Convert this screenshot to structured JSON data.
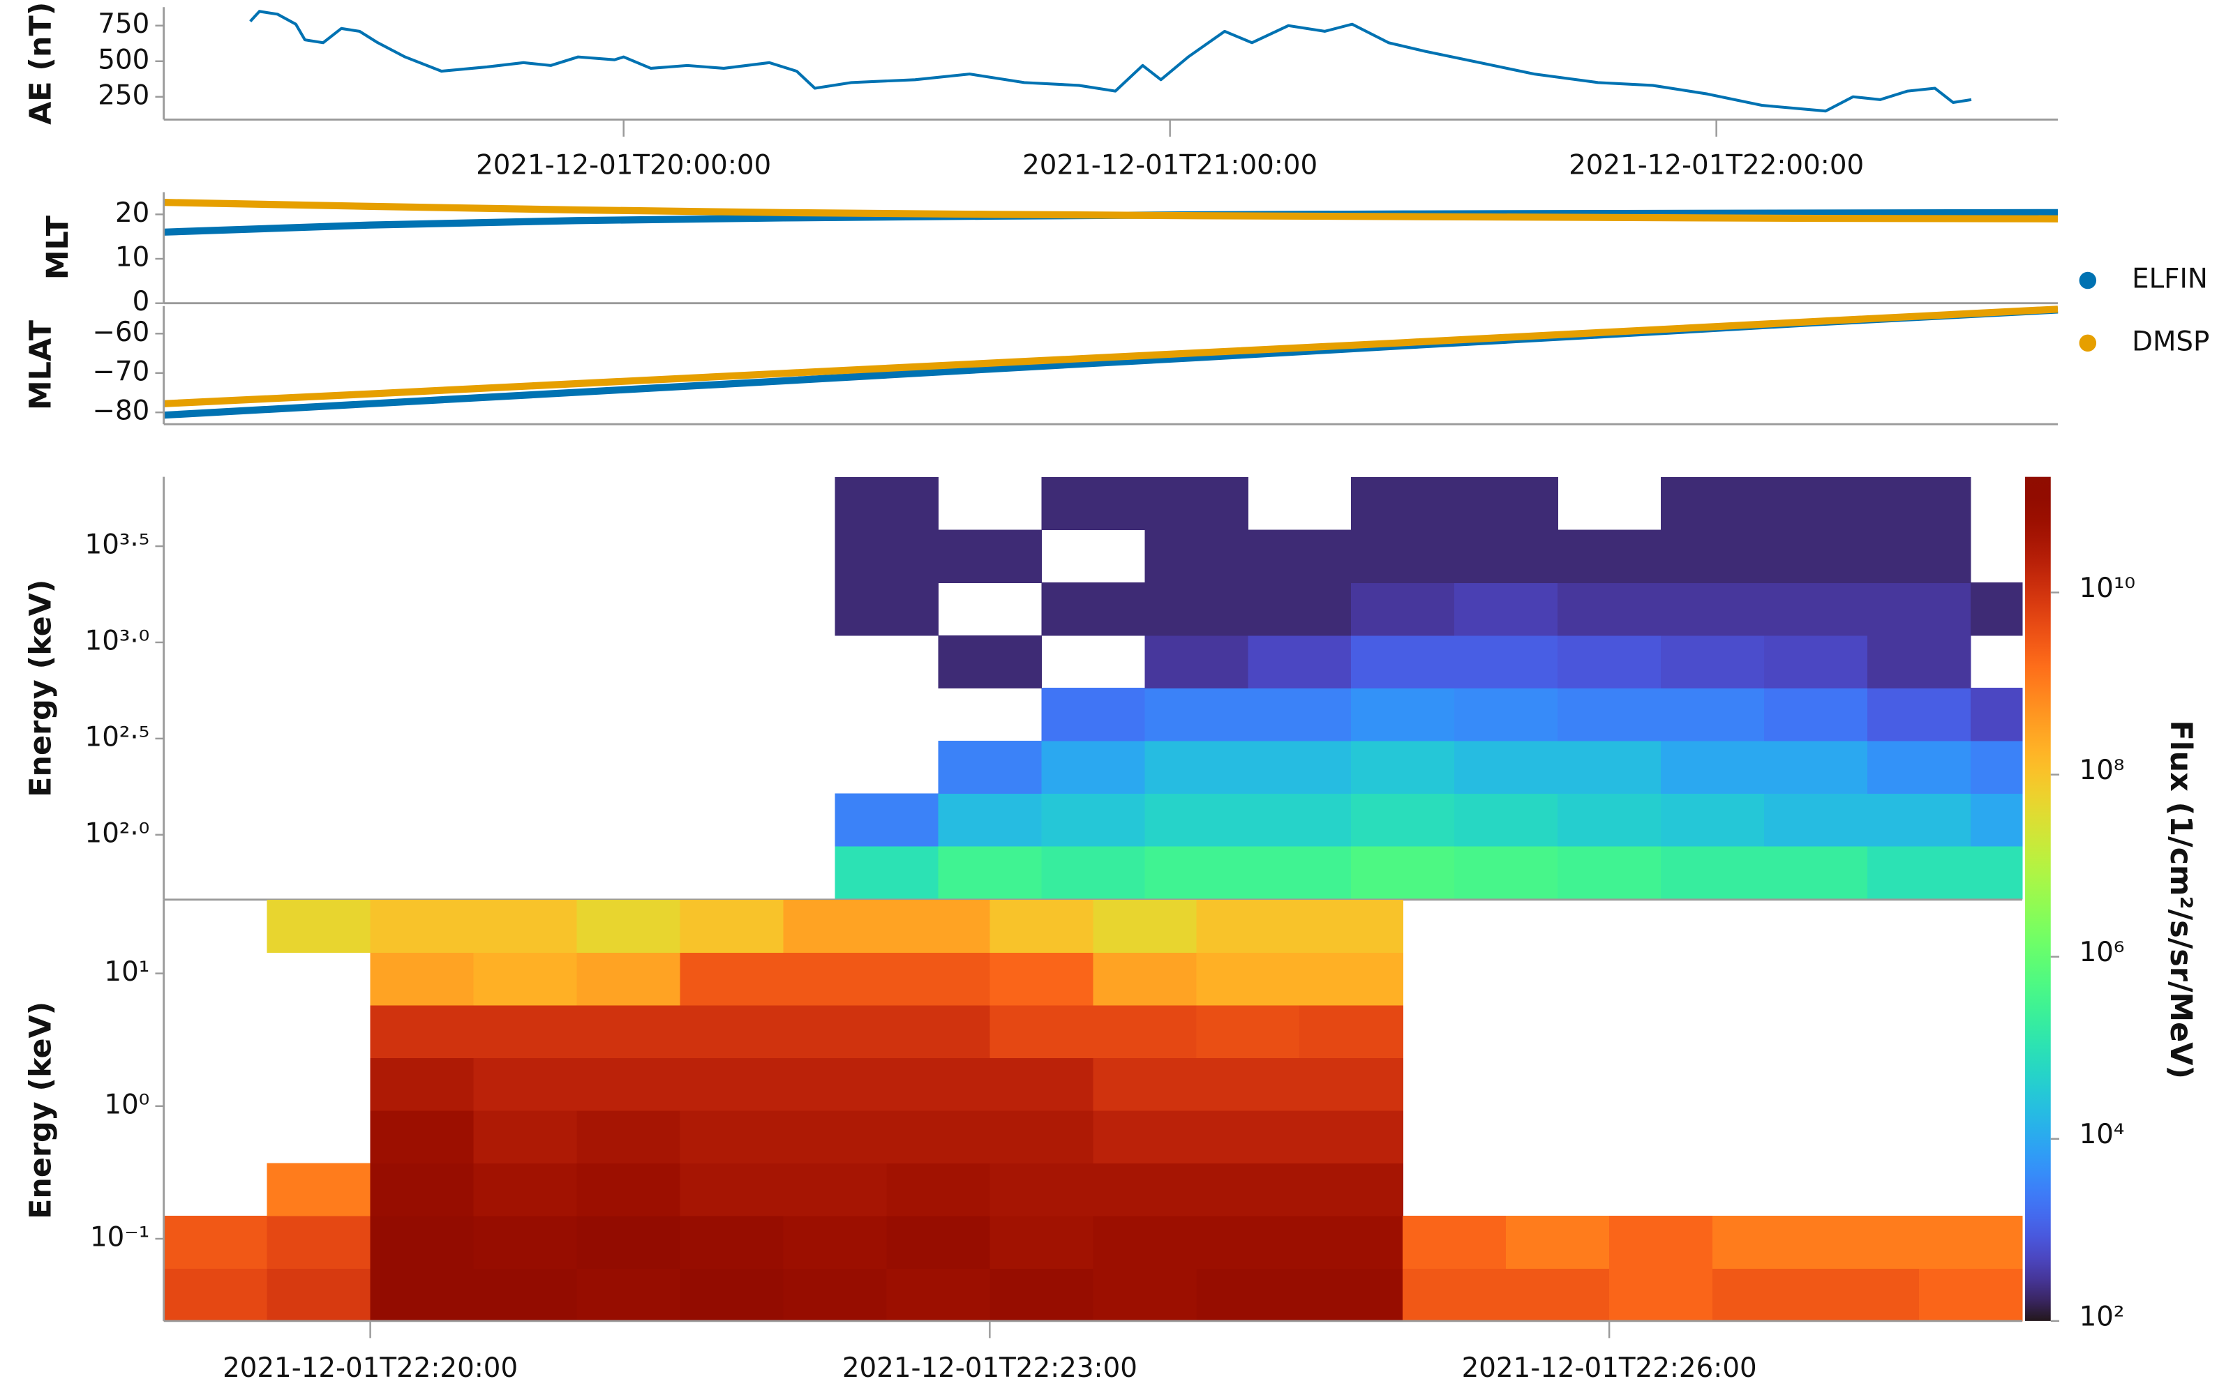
{
  "chart_data": [
    {
      "type": "line",
      "ylabel": "AE (nT)",
      "color": "#0072b2",
      "x": [
        "2021-12-01T19:19:00",
        "2021-12-01T19:20:00",
        "2021-12-01T19:22:00",
        "2021-12-01T19:24:00",
        "2021-12-01T19:25:00",
        "2021-12-01T19:27:00",
        "2021-12-01T19:29:00",
        "2021-12-01T19:31:00",
        "2021-12-01T19:33:00",
        "2021-12-01T19:36:00",
        "2021-12-01T19:40:00",
        "2021-12-01T19:45:00",
        "2021-12-01T19:49:00",
        "2021-12-01T19:52:00",
        "2021-12-01T19:55:00",
        "2021-12-01T19:59:00",
        "2021-12-01T20:00:00",
        "2021-12-01T20:03:00",
        "2021-12-01T20:07:00",
        "2021-12-01T20:11:00",
        "2021-12-01T20:16:00",
        "2021-12-01T20:19:00",
        "2021-12-01T20:21:00",
        "2021-12-01T20:25:00",
        "2021-12-01T20:32:00",
        "2021-12-01T20:38:00",
        "2021-12-01T20:44:00",
        "2021-12-01T20:50:00",
        "2021-12-01T20:54:00",
        "2021-12-01T20:57:00",
        "2021-12-01T20:59:00",
        "2021-12-01T21:02:00",
        "2021-12-01T21:06:00",
        "2021-12-01T21:09:00",
        "2021-12-01T21:13:00",
        "2021-12-01T21:17:00",
        "2021-12-01T21:20:00",
        "2021-12-01T21:24:00",
        "2021-12-01T21:28:00",
        "2021-12-01T21:34:00",
        "2021-12-01T21:40:00",
        "2021-12-01T21:47:00",
        "2021-12-01T21:53:00",
        "2021-12-01T21:59:00",
        "2021-12-01T22:05:00",
        "2021-12-01T22:12:00",
        "2021-12-01T22:15:00",
        "2021-12-01T22:18:00",
        "2021-12-01T22:21:00",
        "2021-12-01T22:24:00",
        "2021-12-01T22:26:00",
        "2021-12-01T22:28:00"
      ],
      "values": [
        780,
        850,
        830,
        760,
        650,
        630,
        730,
        710,
        630,
        530,
        430,
        460,
        490,
        470,
        530,
        510,
        530,
        450,
        470,
        450,
        490,
        430,
        310,
        350,
        370,
        410,
        350,
        330,
        290,
        470,
        370,
        530,
        710,
        630,
        750,
        710,
        760,
        630,
        570,
        490,
        410,
        350,
        330,
        270,
        190,
        150,
        250,
        230,
        290,
        310,
        210,
        230
      ],
      "xlim": [
        "2021-12-01T19:09:30",
        "2021-12-01T22:37:30"
      ],
      "xticks": [
        "2021-12-01T20:00:00",
        "2021-12-01T21:00:00",
        "2021-12-01T22:00:00"
      ],
      "ylim": [
        90,
        880
      ],
      "yticks": [
        250,
        500,
        750
      ]
    },
    {
      "type": "line",
      "ylabel": "MLT",
      "legend": "right",
      "x": [
        "2021-12-01T22:19:00",
        "2021-12-01T22:20:00",
        "2021-12-01T22:21:00",
        "2021-12-01T22:22:00",
        "2021-12-01T22:23:00",
        "2021-12-01T22:24:00",
        "2021-12-01T22:25:00",
        "2021-12-01T22:26:00",
        "2021-12-01T22:27:00",
        "2021-12-01T22:28:10"
      ],
      "series": [
        {
          "name": "ELFIN",
          "color": "#0072b2",
          "values": [
            16.0,
            17.6,
            18.6,
            19.2,
            19.6,
            19.9,
            20.1,
            20.2,
            20.3,
            20.4
          ]
        },
        {
          "name": "DMSP",
          "color": "#e69f00",
          "values": [
            22.7,
            21.8,
            21.0,
            20.4,
            20.0,
            19.7,
            19.5,
            19.3,
            19.1,
            19.0
          ]
        }
      ],
      "xlim": [
        "2021-12-01T22:19:00",
        "2021-12-01T22:28:10"
      ],
      "ylim": [
        0,
        25
      ],
      "yticks": [
        0,
        10,
        20
      ]
    },
    {
      "type": "line",
      "ylabel": "MLAT",
      "x": [
        "2021-12-01T22:19:00",
        "2021-12-01T22:20:00",
        "2021-12-01T22:21:00",
        "2021-12-01T22:22:00",
        "2021-12-01T22:23:00",
        "2021-12-01T22:24:00",
        "2021-12-01T22:25:00",
        "2021-12-01T22:26:00",
        "2021-12-01T22:27:00",
        "2021-12-01T22:28:10"
      ],
      "series": [
        {
          "color": "#0072b2",
          "values": [
            -80.7,
            -77.8,
            -74.9,
            -72.0,
            -69.0,
            -66.1,
            -63.1,
            -60.2,
            -57.2,
            -54.0
          ]
        },
        {
          "color": "#e69f00",
          "values": [
            -77.8,
            -75.3,
            -72.7,
            -70.1,
            -67.5,
            -64.9,
            -62.3,
            -59.6,
            -56.9,
            -53.8
          ]
        }
      ],
      "xlim": [
        "2021-12-01T22:19:00",
        "2021-12-01T22:28:10"
      ],
      "ylim": [
        -83,
        -53
      ],
      "yticks": [
        {
          "value": -80,
          "label": "−80"
        },
        {
          "value": -70,
          "label": "−70"
        },
        {
          "value": -60,
          "label": "−60"
        }
      ]
    },
    {
      "type": "heatmap",
      "ylabel": "Energy (keV)",
      "log_y": true,
      "x_edges": [
        "2021-12-01T22:22:15",
        "2021-12-01T22:22:45",
        "2021-12-01T22:23:15",
        "2021-12-01T22:23:45",
        "2021-12-01T22:24:15",
        "2021-12-01T22:24:45",
        "2021-12-01T22:25:15",
        "2021-12-01T22:25:45",
        "2021-12-01T22:26:15",
        "2021-12-01T22:26:45",
        "2021-12-01T22:27:15",
        "2021-12-01T22:27:45",
        "2021-12-01T22:28:00"
      ],
      "y_edges": [
        46.4,
        87.3,
        164,
        308,
        580,
        1089,
        2047,
        3855,
        7244
      ],
      "z": [
        [
          100000.0,
          300000.0,
          200000.0,
          300000.0,
          300000.0,
          500000.0,
          400000.0,
          300000.0,
          200000.0,
          200000.0,
          100000.0,
          100000.0
        ],
        [
          3000.0,
          20000.0,
          30000.0,
          50000.0,
          50000.0,
          80000.0,
          60000.0,
          40000.0,
          30000.0,
          20000.0,
          20000.0,
          10000.0
        ],
        [
          null,
          3000.0,
          10000.0,
          20000.0,
          20000.0,
          30000.0,
          20000.0,
          20000.0,
          10000.0,
          10000.0,
          5000.0,
          3000.0
        ],
        [
          null,
          null,
          2000.0,
          3000.0,
          3000.0,
          5000.0,
          4000.0,
          3000.0,
          3000.0,
          2000.0,
          1000.0,
          500.0
        ],
        [
          null,
          200.0,
          null,
          300.0,
          500.0,
          1000.0,
          1000.0,
          800.0,
          600.0,
          500.0,
          300.0,
          null
        ],
        [
          200.0,
          null,
          200.0,
          200.0,
          200.0,
          300.0,
          400.0,
          300.0,
          300.0,
          300.0,
          300.0,
          200.0
        ],
        [
          200.0,
          200.0,
          null,
          200.0,
          200.0,
          200.0,
          200.0,
          200.0,
          200.0,
          200.0,
          200.0,
          null
        ],
        [
          200.0,
          null,
          200.0,
          200.0,
          null,
          200.0,
          200.0,
          null,
          200.0,
          200.0,
          200.0,
          null
        ]
      ],
      "xlim": [
        "2021-12-01T22:19:00",
        "2021-12-01T22:28:00"
      ],
      "ylim": [
        46,
        7250
      ],
      "yticks": [
        {
          "value": 100,
          "label": "10²·⁰"
        },
        {
          "value": 316.2,
          "label": "10²·⁵"
        },
        {
          "value": 1000,
          "label": "10³·⁰"
        },
        {
          "value": 3162,
          "label": "10³·⁵"
        }
      ]
    },
    {
      "type": "heatmap",
      "ylabel": "Energy (keV)",
      "log_y": true,
      "colormap": "turbo",
      "x_edges": [
        "2021-12-01T22:19:00",
        "2021-12-01T22:19:30",
        "2021-12-01T22:20:00",
        "2021-12-01T22:20:30",
        "2021-12-01T22:21:00",
        "2021-12-01T22:21:30",
        "2021-12-01T22:22:00",
        "2021-12-01T22:22:30",
        "2021-12-01T22:23:00",
        "2021-12-01T22:23:30",
        "2021-12-01T22:24:00",
        "2021-12-01T22:24:30",
        "2021-12-01T22:25:00",
        "2021-12-01T22:25:30",
        "2021-12-01T22:26:00",
        "2021-12-01T22:26:30",
        "2021-12-01T22:27:00",
        "2021-12-01T22:27:30",
        "2021-12-01T22:28:00"
      ],
      "y_edges": [
        0.024,
        0.0598,
        0.149,
        0.372,
        0.929,
        2.32,
        5.78,
        14.4,
        36
      ],
      "z": [
        [
          5000000000.0,
          8000000000.0,
          100000000000.0,
          100000000000.0,
          80000000000.0,
          100000000000.0,
          80000000000.0,
          60000000000.0,
          80000000000.0,
          60000000000.0,
          80000000000.0,
          80000000000.0,
          3000000000.0,
          3000000000.0,
          2000000000.0,
          3000000000.0,
          3000000000.0,
          2000000000.0
        ],
        [
          3000000000.0,
          5000000000.0,
          100000000000.0,
          80000000000.0,
          100000000000.0,
          80000000000.0,
          60000000000.0,
          80000000000.0,
          50000000000.0,
          60000000000.0,
          60000000000.0,
          60000000000.0,
          2000000000.0,
          1000000000.0,
          2000000000.0,
          1000000000.0,
          1000000000.0,
          1000000000.0
        ],
        [
          null,
          1000000000.0,
          80000000000.0,
          50000000000.0,
          60000000000.0,
          40000000000.0,
          40000000000.0,
          50000000000.0,
          40000000000.0,
          40000000000.0,
          40000000000.0,
          40000000000.0,
          null,
          null,
          null,
          null,
          null,
          null
        ],
        [
          null,
          null,
          60000000000.0,
          30000000000.0,
          40000000000.0,
          30000000000.0,
          30000000000.0,
          30000000000.0,
          30000000000.0,
          20000000000.0,
          20000000000.0,
          20000000000.0,
          null,
          null,
          null,
          null,
          null,
          null
        ],
        [
          null,
          null,
          30000000000.0,
          20000000000.0,
          20000000000.0,
          20000000000.0,
          20000000000.0,
          20000000000.0,
          20000000000.0,
          10000000000.0,
          10000000000.0,
          10000000000.0,
          null,
          null,
          null,
          null,
          null,
          null
        ],
        [
          null,
          null,
          10000000000.0,
          10000000000.0,
          10000000000.0,
          10000000000.0,
          10000000000.0,
          10000000000.0,
          5000000000.0,
          5000000000.0,
          4000000000.0,
          5000000000.0,
          null,
          null,
          null,
          null,
          null,
          null
        ],
        [
          null,
          null,
          300000000.0,
          200000000.0,
          300000000.0,
          3000000000.0,
          3000000000.0,
          3000000000.0,
          2000000000.0,
          300000000.0,
          200000000.0,
          200000000.0,
          null,
          null,
          null,
          null,
          null,
          null
        ],
        [
          null,
          50000000.0,
          100000000.0,
          100000000.0,
          50000000.0,
          100000000.0,
          300000000.0,
          300000000.0,
          100000000.0,
          50000000.0,
          100000000.0,
          100000000.0,
          null,
          null,
          null,
          null,
          null,
          null
        ]
      ],
      "xlim": [
        "2021-12-01T22:19:00",
        "2021-12-01T22:28:00"
      ],
      "xticks": [
        "2021-12-01T22:20:00",
        "2021-12-01T22:23:00",
        "2021-12-01T22:26:00"
      ],
      "ylim": [
        0.024,
        36
      ],
      "yticks": [
        {
          "value": 0.1,
          "label": "10⁻¹"
        },
        {
          "value": 1,
          "label": "10⁰"
        },
        {
          "value": 10,
          "label": "10¹"
        }
      ],
      "zlabel": "Flux (1/cm²/s/sr/MeV)",
      "zlim": [
        100,
        186000000000.0
      ],
      "zticks": [
        {
          "value": 100,
          "label": "10²"
        },
        {
          "value": 10000,
          "label": "10⁴"
        },
        {
          "value": 1000000,
          "label": "10⁶"
        },
        {
          "value": 100000000,
          "label": "10⁸"
        },
        {
          "value": 10000000000,
          "label": "10¹⁰"
        }
      ]
    }
  ]
}
